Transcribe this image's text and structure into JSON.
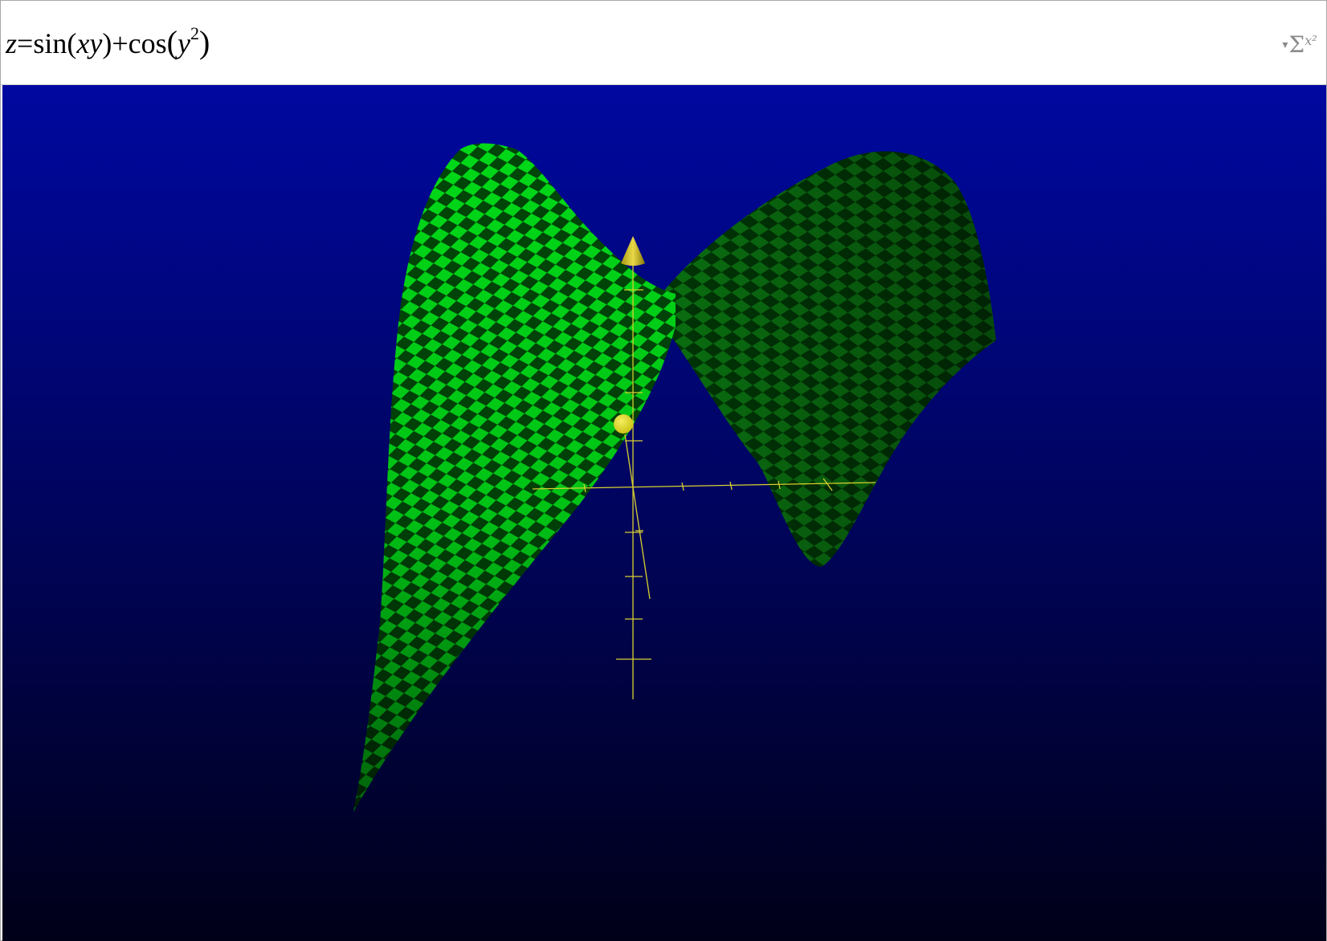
{
  "formula_bar": {
    "lhs": "z",
    "equals": "=",
    "fn1": "sin",
    "arg1": "xy",
    "plus": "+",
    "fn2": "cos",
    "arg2_base": "y",
    "arg2_exp": "2",
    "insert_button_icon": "sigma-x-squared-icon"
  },
  "view3d": {
    "background_top_color": "#0008A0",
    "background_bottom_color": "#000018",
    "surface_light_color": "#00D818",
    "surface_dark_color": "#004608",
    "axis_color": "#D8D030",
    "arrowhead_color": "#E8D848",
    "point_color": "#C8C010"
  }
}
